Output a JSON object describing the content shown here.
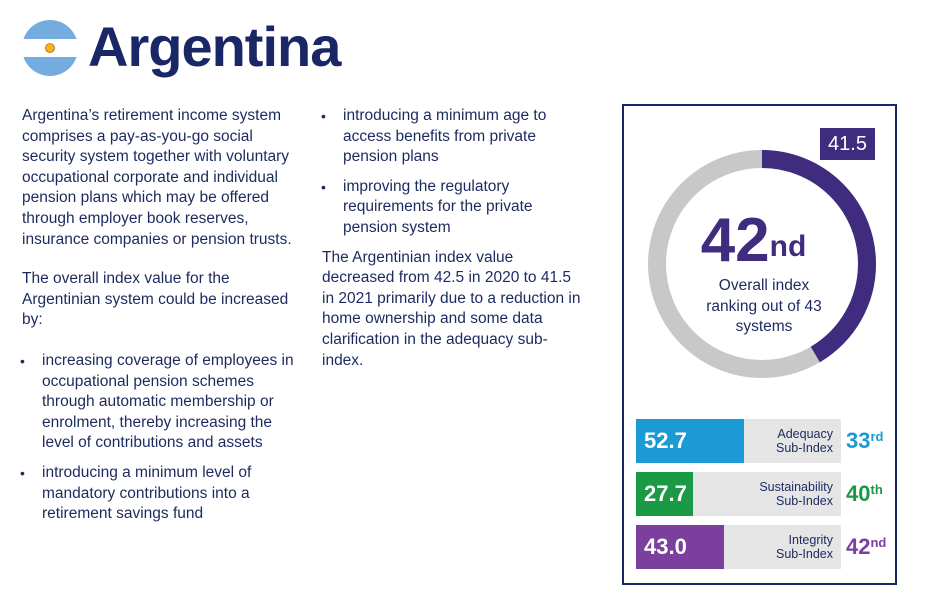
{
  "header": {
    "title": "Argentina",
    "flag_colors": {
      "blue": "#74acdf",
      "white": "#ffffff",
      "sun": "#f6b40e"
    }
  },
  "column1": {
    "paragraph1": "Argentina’s retirement income system comprises a pay-as-you-go social security system together with voluntary occupational corporate and individual pension plans which may be offered through employer book reserves, insurance companies or pension trusts.",
    "paragraph2": "The overall index value for the Argentinian system could be increased by:",
    "bullets": [
      "increasing coverage of employees in occupational pension schemes through automatic membership or enrolment, thereby increasing the level of contributions and assets",
      "introducing a minimum level of mandatory contributions into a retirement savings fund"
    ]
  },
  "column2": {
    "bullets": [
      "introducing a minimum age to access benefits from private pension plans",
      "improving the regulatory requirements for the private pension system"
    ],
    "paragraph3": "The Argentinian index value decreased from 42.5 in 2020 to 41.5 in 2021 primarily due to a reduction in home ownership and some data clarification in the adequacy sub-index."
  },
  "scorecard": {
    "overall_value": "41.5",
    "overall_value_num": 41.5,
    "overall_max": 100,
    "rank_number": "42",
    "rank_suffix": "nd",
    "rank_label": "Overall index ranking out of 43 systems",
    "colors": {
      "ring": "#c8c8c8",
      "progress": "#3f2c7f",
      "border": "#1a2766"
    },
    "sub_indices": [
      {
        "value": "52.7",
        "value_num": 52.7,
        "label_line1": "Adequacy",
        "label_line2": "Sub-Index",
        "rank_number": "33",
        "rank_suffix": "rd",
        "color": "#1b9ad6"
      },
      {
        "value": "27.7",
        "value_num": 27.7,
        "label_line1": "Sustainability",
        "label_line2": "Sub-Index",
        "rank_number": "40",
        "rank_suffix": "th",
        "color": "#1a9a45"
      },
      {
        "value": "43.0",
        "value_num": 43.0,
        "label_line1": "Integrity",
        "label_line2": "Sub-Index",
        "rank_number": "42",
        "rank_suffix": "nd",
        "color": "#7b3f9e"
      }
    ]
  }
}
